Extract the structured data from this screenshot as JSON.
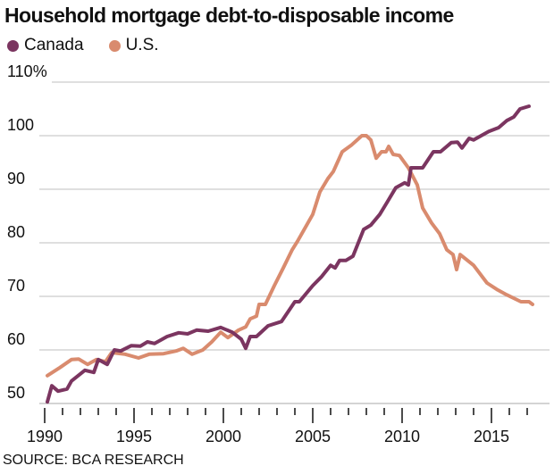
{
  "chart_data": {
    "type": "line",
    "title": "Household mortgage debt-to-disposable income",
    "xlabel": "",
    "ylabel": "",
    "xlim": [
      1990,
      2017.5
    ],
    "ylim": [
      50,
      110
    ],
    "y_ticks": [
      {
        "value": 110,
        "label": "110%"
      },
      {
        "value": 100,
        "label": "100"
      },
      {
        "value": 90,
        "label": "90"
      },
      {
        "value": 80,
        "label": "80"
      },
      {
        "value": 70,
        "label": "70"
      },
      {
        "value": 60,
        "label": "60"
      },
      {
        "value": 50,
        "label": "50"
      }
    ],
    "x_ticks": [
      {
        "value": 1990,
        "label": "1990"
      },
      {
        "value": 1995,
        "label": "1995"
      },
      {
        "value": 2000,
        "label": "2000"
      },
      {
        "value": 2005,
        "label": "2005"
      },
      {
        "value": 2010,
        "label": "2010"
      },
      {
        "value": 2015,
        "label": "2015"
      }
    ],
    "grid": true,
    "legend_position": "top-left",
    "series": [
      {
        "name": "Canada",
        "color": "#7b3560",
        "x": [
          1990.15,
          1990.4,
          1990.75,
          1991.25,
          1991.5,
          1992.25,
          1992.75,
          1993,
          1993.5,
          1993.9,
          1994.25,
          1994.85,
          1995.35,
          1995.75,
          1996.15,
          1996.85,
          1997.5,
          1998,
          1998.5,
          1999.15,
          1999.85,
          2000.5,
          2001,
          2001.25,
          2001.5,
          2001.85,
          2002.5,
          2003.25,
          2004,
          2004.25,
          2005,
          2005.5,
          2006,
          2006.25,
          2006.5,
          2006.85,
          2007.25,
          2007.85,
          2008.25,
          2008.75,
          2009.15,
          2009.65,
          2010.15,
          2010.35,
          2010.5,
          2011.15,
          2011.75,
          2012.15,
          2012.75,
          2013.1,
          2013.35,
          2013.75,
          2014,
          2014.85,
          2015.4,
          2015.85,
          2016.25,
          2016.6,
          2017.1
        ],
        "y": [
          50.3,
          53.3,
          52.3,
          52.7,
          54.2,
          56.2,
          55.8,
          58.2,
          57.3,
          60,
          59.8,
          60.8,
          60.7,
          61.5,
          61.2,
          62.5,
          63.2,
          63,
          63.7,
          63.5,
          64.2,
          63.3,
          62,
          60.3,
          62.5,
          62.5,
          64.5,
          65.3,
          69,
          69,
          72,
          73.7,
          75.8,
          75.3,
          76.7,
          76.7,
          77.5,
          82.5,
          83.3,
          85.3,
          87.5,
          90.3,
          91.2,
          90.8,
          94,
          94,
          97,
          97,
          98.7,
          98.8,
          97.7,
          99.5,
          99.2,
          100.8,
          101.5,
          102.8,
          103.5,
          105,
          105.5
        ]
      },
      {
        "name": "U.S.",
        "color": "#d98b6e",
        "x": [
          1990.15,
          1990.85,
          1991.5,
          1991.9,
          1992.4,
          1992.9,
          1993.4,
          1993.75,
          1994.5,
          1995.25,
          1995.85,
          1996.65,
          1997.35,
          1997.75,
          1998.25,
          1998.85,
          1999.35,
          1999.85,
          2000.25,
          2000.85,
          2001.25,
          2001.5,
          2001.85,
          2002,
          2002.35,
          2002.85,
          2003.35,
          2003.85,
          2004.15,
          2005,
          2005.4,
          2005.85,
          2006.15,
          2006.65,
          2007.15,
          2007.75,
          2008,
          2008.25,
          2008.55,
          2008.85,
          2009.1,
          2009.25,
          2009.5,
          2009.85,
          2010.35,
          2010.85,
          2011.15,
          2011.65,
          2012.1,
          2012.5,
          2012.85,
          2013.05,
          2013.25,
          2014,
          2014.75,
          2015.35,
          2015.85,
          2016.65,
          2017.1,
          2017.3
        ],
        "y": [
          55.2,
          56.7,
          58.2,
          58.3,
          57.3,
          58.2,
          57.8,
          59.5,
          59.2,
          58.5,
          59.2,
          59.3,
          59.8,
          60.3,
          59.2,
          60,
          61.5,
          63.3,
          62.3,
          63.7,
          64.3,
          65.8,
          66.3,
          68.5,
          68.5,
          72,
          75.3,
          78.7,
          80.3,
          85.3,
          89.5,
          92,
          93.3,
          97,
          98.2,
          100,
          100,
          99.2,
          95.8,
          97,
          97,
          98,
          96.5,
          96.3,
          94,
          90.8,
          86.5,
          83.7,
          81.7,
          78.7,
          77.8,
          75,
          77.8,
          75.8,
          72.5,
          71.2,
          70.3,
          69,
          69,
          68.5
        ]
      }
    ]
  },
  "source": "SOURCE: BCA RESEARCH"
}
